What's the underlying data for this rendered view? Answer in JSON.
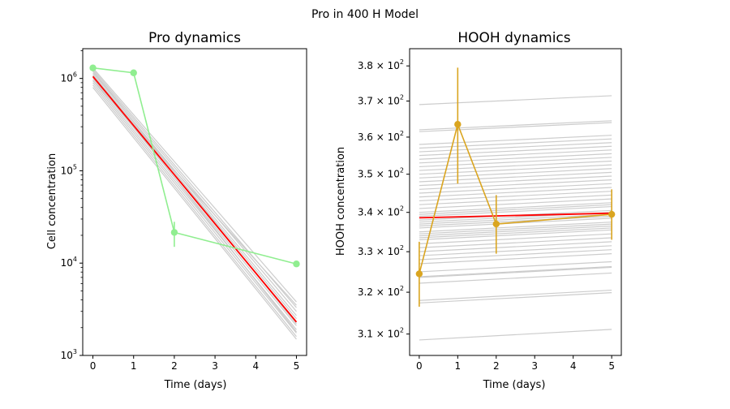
{
  "figure": {
    "suptitle": "Pro in 400 H Model"
  },
  "chart_data": [
    {
      "type": "line",
      "title": "Pro dynamics",
      "xlabel": "Time (days)",
      "ylabel": "Cell concentration",
      "yscale": "log",
      "xlim": [
        -0.25,
        5.25
      ],
      "ylim": [
        1000,
        2100000
      ],
      "xticks": [
        0,
        1,
        2,
        3,
        4,
        5
      ],
      "yticks": [
        {
          "value": 1000,
          "base": "10",
          "exp": "3"
        },
        {
          "value": 10000,
          "base": "10",
          "exp": "4"
        },
        {
          "value": 100000,
          "base": "10",
          "exp": "5"
        },
        {
          "value": 1000000,
          "base": "10",
          "exp": "6"
        }
      ],
      "colors": {
        "model": "#ff0000",
        "data": "#90ee90",
        "ensemble": "#cccccc"
      },
      "model": {
        "x": [
          0,
          5
        ],
        "y": [
          1050000,
          2300
        ]
      },
      "ensemble": [
        {
          "x": [
            0,
            5
          ],
          "y": [
            1300000,
            3800
          ]
        },
        {
          "x": [
            0,
            5
          ],
          "y": [
            1250000,
            3300
          ]
        },
        {
          "x": [
            0,
            5
          ],
          "y": [
            1200000,
            3000
          ]
        },
        {
          "x": [
            0,
            5
          ],
          "y": [
            1150000,
            2700
          ]
        },
        {
          "x": [
            0,
            5
          ],
          "y": [
            1100000,
            2500
          ]
        },
        {
          "x": [
            0,
            5
          ],
          "y": [
            1050000,
            2300
          ]
        },
        {
          "x": [
            0,
            5
          ],
          "y": [
            1000000,
            2100
          ]
        },
        {
          "x": [
            0,
            5
          ],
          "y": [
            950000,
            1900
          ]
        },
        {
          "x": [
            0,
            5
          ],
          "y": [
            900000,
            1750
          ]
        },
        {
          "x": [
            0,
            5
          ],
          "y": [
            850000,
            1600
          ]
        },
        {
          "x": [
            0,
            5
          ],
          "y": [
            800000,
            1500
          ]
        },
        {
          "x": [
            0,
            5
          ],
          "y": [
            1200000,
            2200
          ]
        },
        {
          "x": [
            0,
            5
          ],
          "y": [
            950000,
            3500
          ]
        },
        {
          "x": [
            0,
            5
          ],
          "y": [
            1100000,
            1800
          ]
        }
      ],
      "data": {
        "x": [
          0,
          1,
          2,
          5
        ],
        "y": [
          1300000,
          1150000,
          21500,
          9800
        ],
        "err_low": [
          null,
          null,
          15000,
          null
        ],
        "err_high": [
          null,
          null,
          28000,
          null
        ]
      }
    },
    {
      "type": "line",
      "title": "HOOH dynamics",
      "xlabel": "Time (days)",
      "ylabel": "HOOH concentration",
      "yscale": "log",
      "xlim": [
        -0.25,
        5.25
      ],
      "ylim": [
        305,
        385
      ],
      "xticks": [
        0,
        1,
        2,
        3,
        4,
        5
      ],
      "yticks": [
        {
          "value": 310,
          "base": "3.1 × 10",
          "exp": "2"
        },
        {
          "value": 320,
          "base": "3.2 × 10",
          "exp": "2"
        },
        {
          "value": 330,
          "base": "3.3 × 10",
          "exp": "2"
        },
        {
          "value": 340,
          "base": "3.4 × 10",
          "exp": "2"
        },
        {
          "value": 350,
          "base": "3.5 × 10",
          "exp": "2"
        },
        {
          "value": 360,
          "base": "3.6 × 10",
          "exp": "2"
        },
        {
          "value": 370,
          "base": "3.7 × 10",
          "exp": "2"
        },
        {
          "value": 380,
          "base": "3.8 × 10",
          "exp": "2"
        }
      ],
      "colors": {
        "model": "#ff0000",
        "data": "#daa520",
        "ensemble": "#cccccc"
      },
      "model": {
        "x": [
          0,
          5
        ],
        "y": [
          338.6,
          339.8
        ]
      },
      "ensemble_start": [
        308.6,
        317.4,
        318.0,
        322.2,
        323.6,
        323.8,
        325.0,
        327.0,
        328.0,
        329.0,
        330.0,
        331.0,
        332.0,
        333.0,
        333.5,
        334.0,
        334.5,
        335.0,
        336.0,
        336.5,
        337.0,
        337.5,
        338.0,
        339.0,
        339.5,
        340.0,
        341.0,
        342.0,
        343.0,
        344.0,
        345.0,
        346.0,
        347.0,
        348.0,
        349.0,
        350.0,
        351.0,
        352.0,
        353.0,
        354.0,
        355.0,
        356.0,
        357.0,
        358.0,
        361.5,
        362.0,
        369.0
      ],
      "ensemble_slope": 0.5,
      "data": {
        "x": [
          0,
          1,
          2,
          5
        ],
        "y": [
          324.5,
          363.5,
          337.0,
          339.5
        ],
        "err_low": [
          316.5,
          347.5,
          329.5,
          333.0
        ],
        "err_high": [
          332.5,
          379.5,
          344.5,
          346.0
        ]
      }
    }
  ]
}
